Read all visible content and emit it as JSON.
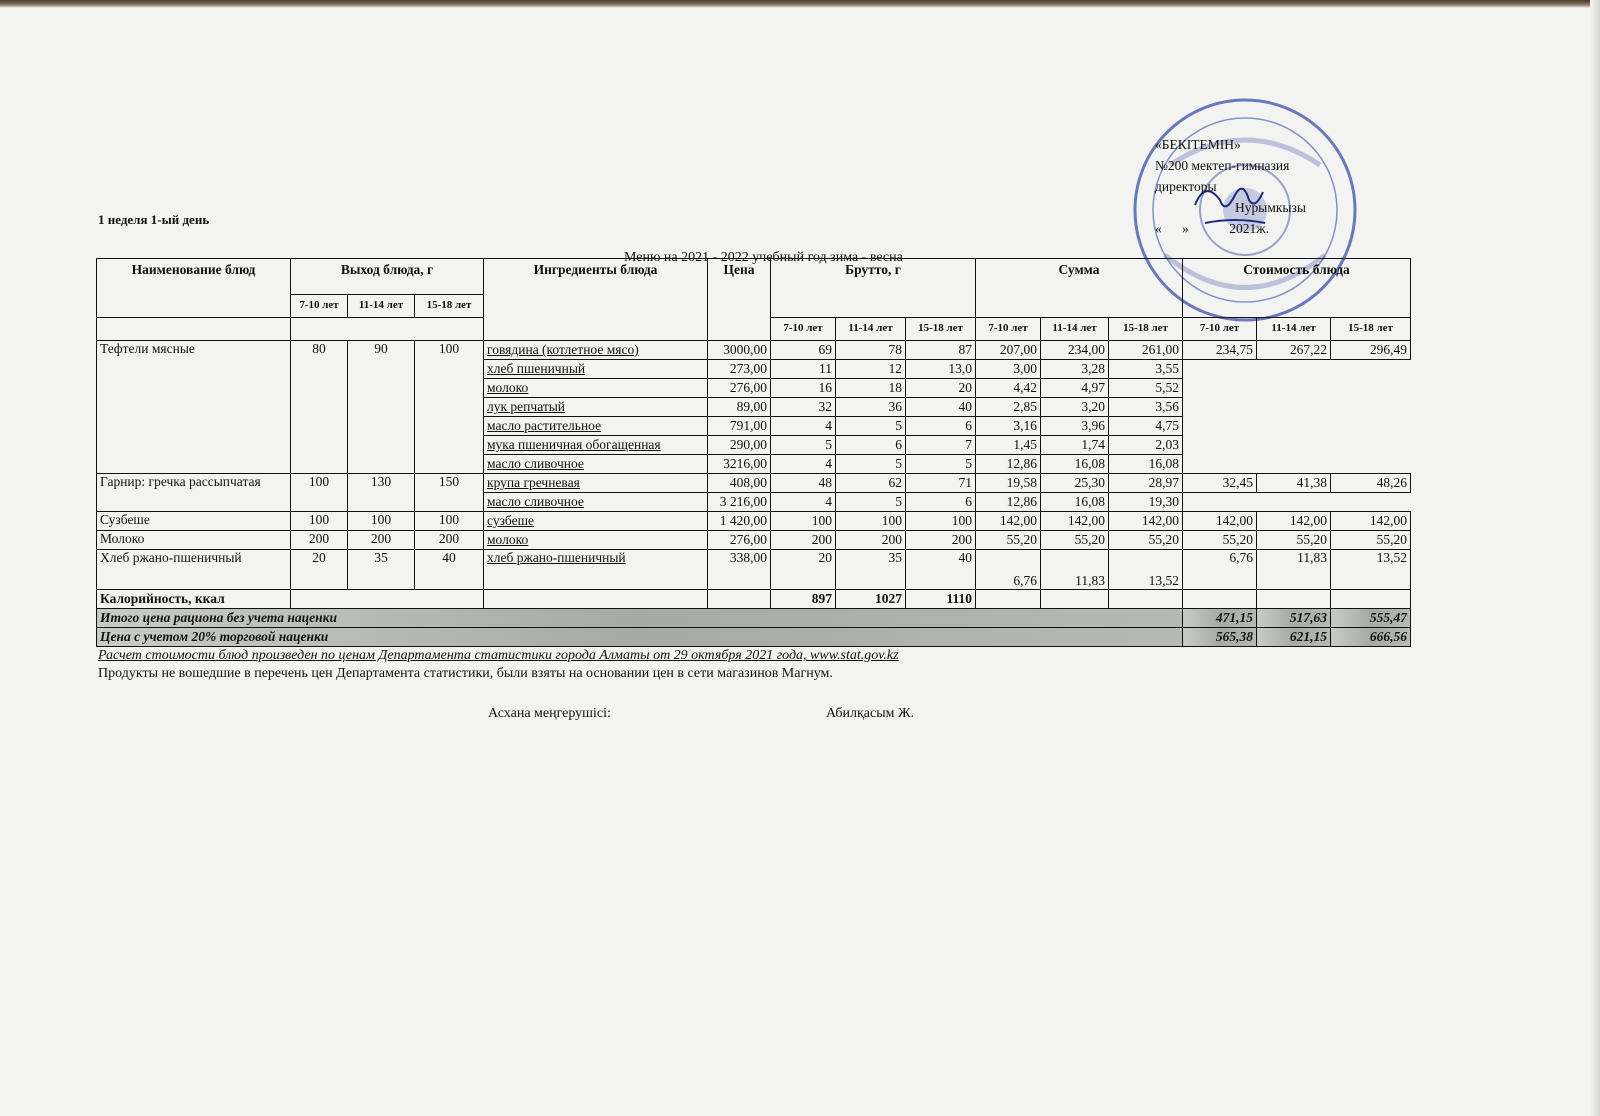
{
  "day_title": "1 неделя 1-ый день",
  "caption": "Меню на 2021 - 2022 учебный год зима - весна",
  "approval": {
    "line1": "«БЕКІТЕМІН»",
    "line2": "№200 мектеп-гимназия",
    "line3": "директоры",
    "line4": "Нурымкызы",
    "line5": "«      »            2021ж."
  },
  "stamp_color": "#3b4fa8",
  "header": {
    "name": "Наименование блюд",
    "yield": "Выход блюда, г",
    "ingredients": "Ингредиенты блюда",
    "price": "Цена",
    "brutto": "Брутто, г",
    "sum": "Сумма",
    "cost": "Стоимость блюда",
    "ages": [
      "7-10 лет",
      "11-14 лет",
      "15-18 лет"
    ]
  },
  "dishes": [
    {
      "name": "Тефтели мясные",
      "yields": [
        "80",
        "90",
        "100"
      ],
      "cost": [
        "234,75",
        "267,22",
        "296,49"
      ],
      "ingredients": [
        {
          "name": "говядина (котлетное мясо)",
          "price": "3000,00",
          "brutto": [
            "69",
            "78",
            "87"
          ],
          "sum": [
            "207,00",
            "234,00",
            "261,00"
          ]
        },
        {
          "name": "хлеб пшеничный",
          "price": "273,00",
          "brutto": [
            "11",
            "12",
            "13,0"
          ],
          "sum": [
            "3,00",
            "3,28",
            "3,55"
          ]
        },
        {
          "name": "молоко",
          "price": "276,00",
          "brutto": [
            "16",
            "18",
            "20"
          ],
          "sum": [
            "4,42",
            "4,97",
            "5,52"
          ]
        },
        {
          "name": "лук репчатый",
          "price": "89,00",
          "brutto": [
            "32",
            "36",
            "40"
          ],
          "sum": [
            "2,85",
            "3,20",
            "3,56"
          ]
        },
        {
          "name": "масло растительное",
          "price": "791,00",
          "brutto": [
            "4",
            "5",
            "6"
          ],
          "sum": [
            "3,16",
            "3,96",
            "4,75"
          ]
        },
        {
          "name": "мука пшеничная обогащенная",
          "price": "290,00",
          "brutto": [
            "5",
            "6",
            "7"
          ],
          "sum": [
            "1,45",
            "1,74",
            "2,03"
          ]
        },
        {
          "name": "масло сливочное",
          "price": "3216,00",
          "brutto": [
            "4",
            "5",
            "5"
          ],
          "sum": [
            "12,86",
            "16,08",
            "16,08"
          ]
        }
      ]
    },
    {
      "name": "Гарнир: гречка рассыпчатая",
      "yields": [
        "100",
        "130",
        "150"
      ],
      "cost": [
        "32,45",
        "41,38",
        "48,26"
      ],
      "ingredients": [
        {
          "name": "крупа гречневая",
          "price": "408,00",
          "brutto": [
            "48",
            "62",
            "71"
          ],
          "sum": [
            "19,58",
            "25,30",
            "28,97"
          ]
        },
        {
          "name": "масло сливочное",
          "price": "3 216,00",
          "brutto": [
            "4",
            "5",
            "6"
          ],
          "sum": [
            "12,86",
            "16,08",
            "19,30"
          ]
        }
      ]
    },
    {
      "name": "Сузбеше",
      "yields": [
        "100",
        "100",
        "100"
      ],
      "cost": [
        "142,00",
        "142,00",
        "142,00"
      ],
      "ingredients": [
        {
          "name": "сузбеше",
          "price": "1 420,00",
          "brutto": [
            "100",
            "100",
            "100"
          ],
          "sum": [
            "142,00",
            "142,00",
            "142,00"
          ]
        }
      ]
    },
    {
      "name": "Молоко",
      "yields": [
        "200",
        "200",
        "200"
      ],
      "cost": [
        "55,20",
        "55,20",
        "55,20"
      ],
      "ingredients": [
        {
          "name": "молоко",
          "price": "276,00",
          "brutto": [
            "200",
            "200",
            "200"
          ],
          "sum": [
            "55,20",
            "55,20",
            "55,20"
          ]
        }
      ]
    },
    {
      "name": "Хлеб ржано-пшеничный",
      "yields": [
        "20",
        "35",
        "40"
      ],
      "cost": [
        "6,76",
        "11,83",
        "13,52"
      ],
      "ingredients": [
        {
          "name": "хлеб ржано-пшеничный",
          "price": "338,00",
          "brutto": [
            "20",
            "35",
            "40"
          ],
          "sum": [
            "6,76",
            "11,83",
            "13,52"
          ]
        }
      ]
    }
  ],
  "calories": {
    "label": "Калорийность, ккал",
    "values": [
      "897",
      "1027",
      "1110"
    ]
  },
  "totals": [
    {
      "label": "Итого цена рациона без учета наценки",
      "values": [
        "471,15",
        "517,63",
        "555,47"
      ]
    },
    {
      "label": "Цена с учетом 20% торговой наценки",
      "values": [
        "565,38",
        "621,15",
        "666,56"
      ]
    }
  ],
  "note1": "Расчет стоимости блюд произведен по ценам Департамента статистики города Алматы от 29 октября 2021 года, www.stat.gov.kz",
  "note2": "Продукты не вошедшие в перечень цен Департамента статистики, были взяты на основании цен в сети магазинов Магнум.",
  "signature": {
    "role": "Асхана меңгерушісі:",
    "name": "Абилқасым Ж."
  }
}
